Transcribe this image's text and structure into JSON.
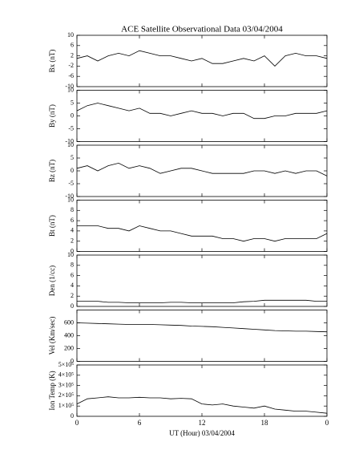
{
  "chart_data": [
    {
      "type": "line",
      "title": "ACE Satellite Observational Data   03/04/2004",
      "ylabel": "Bx (nT)",
      "x": [
        0,
        1,
        2,
        3,
        4,
        5,
        6,
        7,
        8,
        9,
        10,
        11,
        12,
        13,
        14,
        15,
        16,
        17,
        18,
        19,
        20,
        21,
        22,
        23,
        24
      ],
      "values": [
        1,
        2,
        0,
        2,
        3,
        2,
        4,
        3,
        2,
        2,
        1,
        0,
        1,
        -1,
        -1,
        0,
        1,
        0,
        2,
        -2,
        2,
        3,
        2,
        2,
        1
      ],
      "xlim": [
        0,
        24
      ],
      "xticks": [
        0,
        6,
        12,
        18,
        {
          "value": 24,
          "label": "0"
        }
      ],
      "ylim": [
        -10,
        10
      ],
      "yticks": [
        -10,
        -6,
        -2,
        2,
        6,
        10
      ],
      "color": "#000000"
    },
    {
      "type": "line",
      "ylabel": "By (nT)",
      "x": [
        0,
        1,
        2,
        3,
        4,
        5,
        6,
        7,
        8,
        9,
        10,
        11,
        12,
        13,
        14,
        15,
        16,
        17,
        18,
        19,
        20,
        21,
        22,
        23,
        24
      ],
      "values": [
        2,
        4,
        5,
        4,
        3,
        2,
        3,
        1,
        1,
        0,
        1,
        2,
        1,
        1,
        0,
        1,
        1,
        -1,
        -1,
        0,
        0,
        1,
        1,
        1,
        2
      ],
      "xlim": [
        0,
        24
      ],
      "xticks": [
        0,
        6,
        12,
        18,
        {
          "value": 24,
          "label": "0"
        }
      ],
      "ylim": [
        -10,
        10
      ],
      "yticks": [
        -10,
        -5,
        0,
        5,
        10
      ],
      "color": "#000000"
    },
    {
      "type": "line",
      "ylabel": "Bz (nT)",
      "x": [
        0,
        1,
        2,
        3,
        4,
        5,
        6,
        7,
        8,
        9,
        10,
        11,
        12,
        13,
        14,
        15,
        16,
        17,
        18,
        19,
        20,
        21,
        22,
        23,
        24
      ],
      "values": [
        1,
        2,
        0,
        2,
        3,
        1,
        2,
        1,
        -1,
        0,
        1,
        1,
        0,
        -1,
        -1,
        -1,
        -1,
        0,
        0,
        -1,
        0,
        -1,
        0,
        0,
        -2
      ],
      "xlim": [
        0,
        24
      ],
      "xticks": [
        0,
        6,
        12,
        18,
        {
          "value": 24,
          "label": "0"
        }
      ],
      "ylim": [
        -10,
        10
      ],
      "yticks": [
        -10,
        -5,
        0,
        5,
        10
      ],
      "color": "#000000"
    },
    {
      "type": "line",
      "ylabel": "Bt (nT)",
      "x": [
        0,
        1,
        2,
        3,
        4,
        5,
        6,
        7,
        8,
        9,
        10,
        11,
        12,
        13,
        14,
        15,
        16,
        17,
        18,
        19,
        20,
        21,
        22,
        23,
        24
      ],
      "values": [
        5,
        5,
        5,
        4.5,
        4.5,
        4,
        5,
        4.5,
        4,
        4,
        3.5,
        3,
        3,
        3,
        2.5,
        2.5,
        2,
        2.5,
        2.5,
        2,
        2.5,
        2.5,
        2.5,
        2.5,
        3.5
      ],
      "xlim": [
        0,
        24
      ],
      "xticks": [
        0,
        6,
        12,
        18,
        {
          "value": 24,
          "label": "0"
        }
      ],
      "ylim": [
        0,
        10
      ],
      "yticks": [
        0,
        2,
        4,
        6,
        8,
        10
      ],
      "color": "#000000"
    },
    {
      "type": "line",
      "ylabel": "Den (1/cc)",
      "x": [
        0,
        1,
        2,
        3,
        4,
        5,
        6,
        7,
        8,
        9,
        10,
        11,
        12,
        13,
        14,
        15,
        16,
        17,
        18,
        19,
        20,
        21,
        22,
        23,
        24
      ],
      "values": [
        1,
        1,
        1,
        0.8,
        0.8,
        0.7,
        0.7,
        0.7,
        0.7,
        0.8,
        0.8,
        0.7,
        0.7,
        0.7,
        0.7,
        0.7,
        0.9,
        1,
        1.2,
        1.2,
        1.2,
        1.2,
        1.2,
        1,
        1
      ],
      "xlim": [
        0,
        24
      ],
      "xticks": [
        0,
        6,
        12,
        18,
        {
          "value": 24,
          "label": "0"
        }
      ],
      "ylim": [
        0,
        10
      ],
      "yticks": [
        0,
        2,
        4,
        6,
        8,
        10
      ],
      "color": "#000000"
    },
    {
      "type": "line",
      "ylabel": "Vel (Km/sec)",
      "x": [
        0,
        1,
        2,
        3,
        4,
        5,
        6,
        7,
        8,
        9,
        10,
        11,
        12,
        13,
        14,
        15,
        16,
        17,
        18,
        19,
        20,
        21,
        22,
        23,
        24
      ],
      "values": [
        600,
        595,
        590,
        585,
        580,
        575,
        575,
        575,
        570,
        565,
        560,
        550,
        545,
        540,
        530,
        520,
        510,
        500,
        490,
        480,
        475,
        470,
        470,
        465,
        460
      ],
      "xlim": [
        0,
        24
      ],
      "xticks": [
        0,
        6,
        12,
        18,
        {
          "value": 24,
          "label": "0"
        }
      ],
      "ylim": [
        0,
        800
      ],
      "yticks": [
        0,
        200,
        400,
        600
      ],
      "color": "#000000"
    },
    {
      "type": "line",
      "ylabel": "Ion Temp (K)",
      "xlabel": "UT (Hour)  03/04/2004",
      "x": [
        0,
        1,
        2,
        3,
        4,
        5,
        6,
        7,
        8,
        9,
        10,
        11,
        12,
        13,
        14,
        15,
        16,
        17,
        18,
        19,
        20,
        21,
        22,
        23,
        24
      ],
      "values": [
        120000,
        170000,
        180000,
        190000,
        180000,
        180000,
        185000,
        180000,
        180000,
        170000,
        175000,
        170000,
        120000,
        110000,
        120000,
        100000,
        90000,
        80000,
        100000,
        70000,
        60000,
        50000,
        50000,
        40000,
        30000
      ],
      "xlim": [
        0,
        24
      ],
      "xticks": [
        0,
        6,
        12,
        18,
        {
          "value": 24,
          "label": "0"
        }
      ],
      "ylim": [
        0,
        500000
      ],
      "yticks": [
        0,
        {
          "value": 100000,
          "label": "1×10⁵"
        },
        {
          "value": 200000,
          "label": "2×10⁵"
        },
        {
          "value": 300000,
          "label": "3×10⁵"
        },
        {
          "value": 400000,
          "label": "4×10⁵"
        },
        {
          "value": 500000,
          "label": "5×10⁵"
        }
      ],
      "color": "#000000"
    }
  ]
}
